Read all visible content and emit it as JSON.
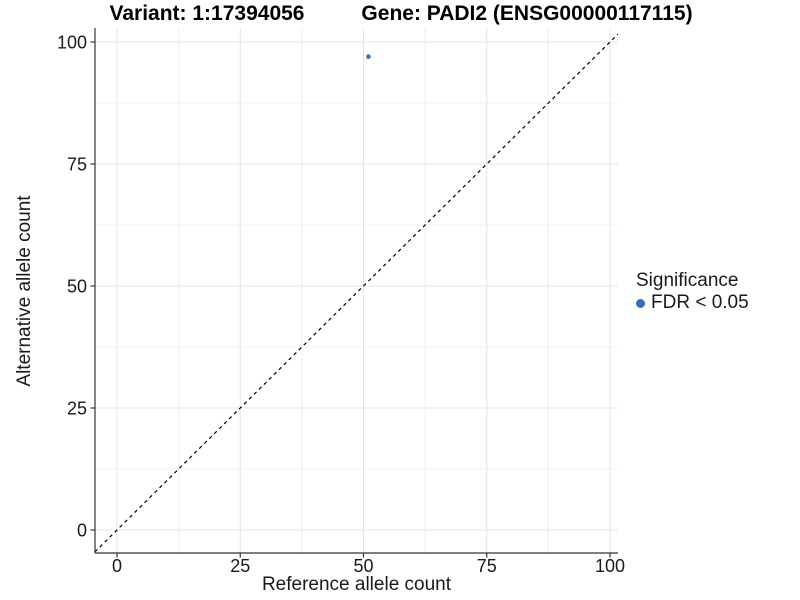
{
  "chart_data": {
    "type": "scatter",
    "titles": {
      "left": "Variant: 1:17394056",
      "right": "Gene: PADI2 (ENSG00000117115)"
    },
    "xlabel": "Reference allele count",
    "ylabel": "Alternative allele count",
    "x_ticks": [
      0,
      25,
      50,
      75,
      100
    ],
    "y_ticks": [
      0,
      25,
      50,
      75,
      100
    ],
    "xlim": [
      -4.5,
      101.6
    ],
    "ylim": [
      -4.7,
      102.9
    ],
    "minor_grid_step": 12.5,
    "grid": "major+minor",
    "reference_line": {
      "type": "identity y=x",
      "style": "dashed"
    },
    "points": [
      {
        "x": 51,
        "y": 97,
        "series": "FDR < 0.05"
      }
    ],
    "legend": {
      "title": "Significance",
      "position": "right",
      "items": [
        {
          "label": "FDR < 0.05",
          "color": "#3a70b2"
        }
      ]
    },
    "colors": {
      "point": "#4a78ad",
      "legend_marker": "#3a70b2",
      "grid_major": "#e4e4e4",
      "grid_minor": "#f1f1f1",
      "axis_line": "#333333",
      "tick_text": "#1a1a1a",
      "dashed_line": "#000000",
      "background": "#ffffff"
    }
  }
}
